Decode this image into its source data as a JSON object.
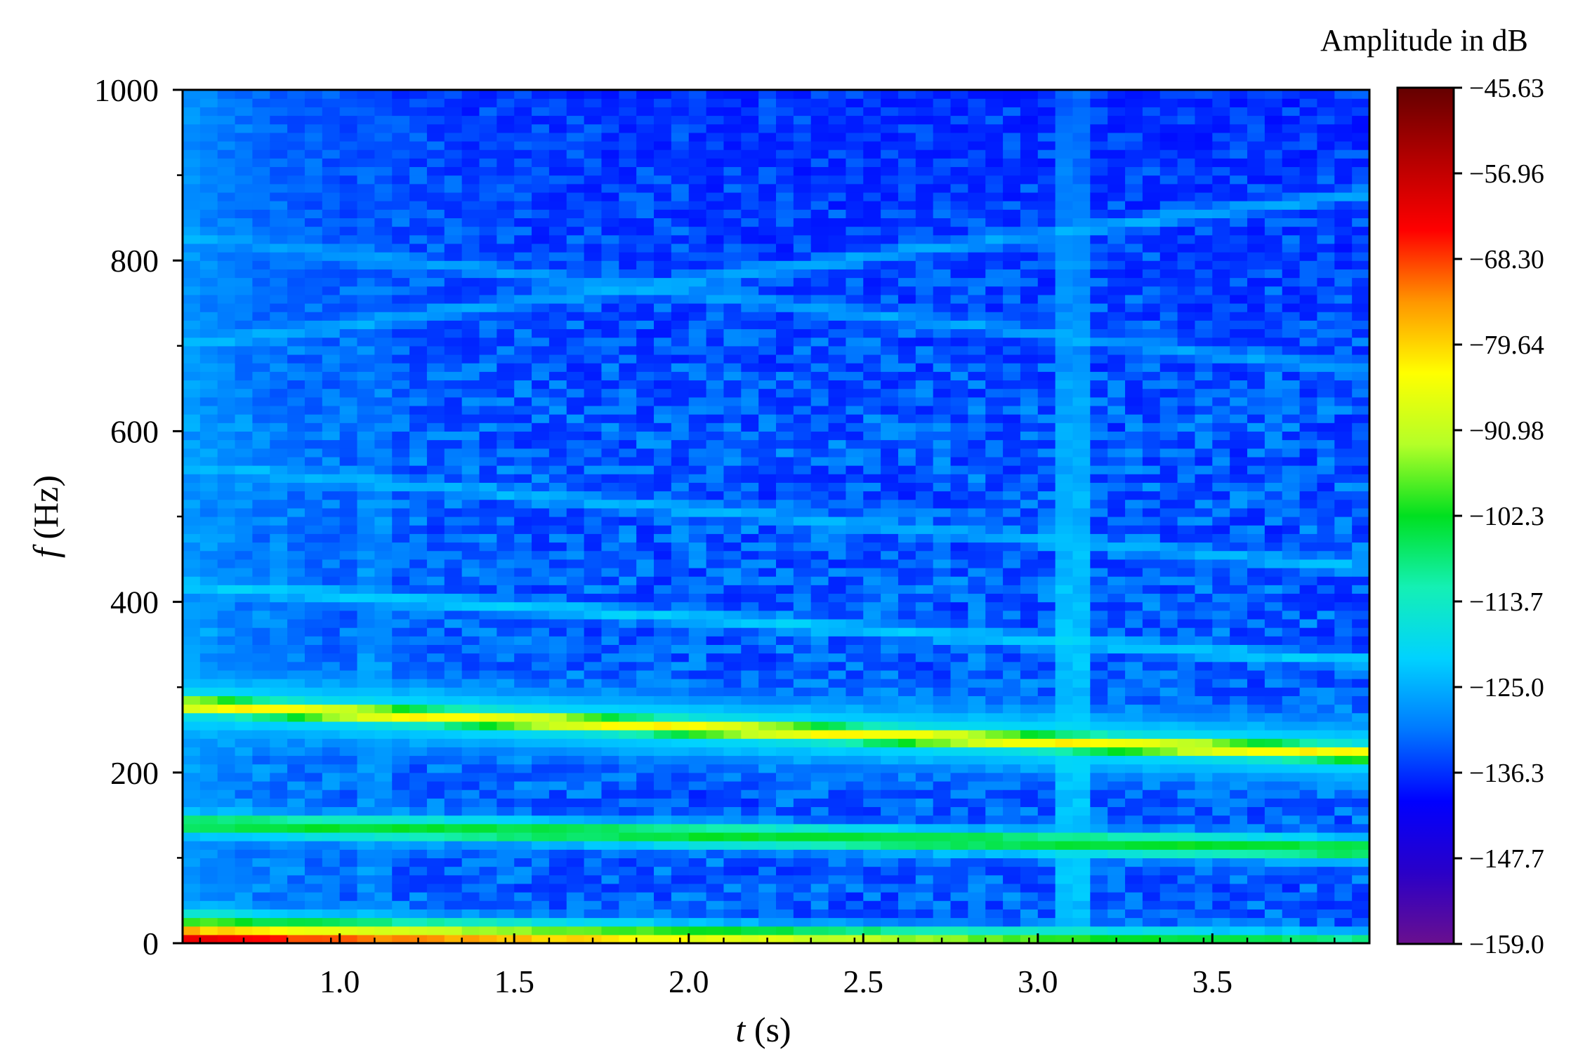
{
  "chart_data": {
    "type": "heatmap",
    "title": "",
    "xlabel": {
      "var": "t",
      "unit": " (s)"
    },
    "ylabel": {
      "var": "f",
      "unit": " (Hz)"
    },
    "xlim": [
      0.55,
      3.95
    ],
    "ylim": [
      0,
      1000
    ],
    "x_ticks": [
      {
        "value": 1.0,
        "label": "1.0"
      },
      {
        "value": 1.5,
        "label": "1.5"
      },
      {
        "value": 2.0,
        "label": "2.0"
      },
      {
        "value": 2.5,
        "label": "2.5"
      },
      {
        "value": 3.0,
        "label": "3.0"
      },
      {
        "value": 3.5,
        "label": "3.5"
      }
    ],
    "y_ticks": [
      {
        "value": 0,
        "label": "0"
      },
      {
        "value": 200,
        "label": "200"
      },
      {
        "value": 400,
        "label": "400"
      },
      {
        "value": 600,
        "label": "600"
      },
      {
        "value": 800,
        "label": "800"
      },
      {
        "value": 1000,
        "label": "1000"
      }
    ],
    "time_step_s": 0.05,
    "freq_step_hz": 10,
    "colorbar": {
      "title": "Amplitude in dB",
      "min": -159.0,
      "max": -45.63,
      "colormap": "jet-like (purple → blue → cyan → green → yellow → red → dark red)",
      "colors": [
        "#6a0f8e",
        "#2a00c8",
        "#0000ff",
        "#0078ff",
        "#00d2ff",
        "#14f0b4",
        "#00e020",
        "#b4ff28",
        "#ffff00",
        "#ff9600",
        "#ff0000",
        "#b40000",
        "#640000"
      ],
      "tick_labels": [
        "−45.63",
        "−56.96",
        "−68.30",
        "−79.64",
        "−90.98",
        "−102.3",
        "−113.7",
        "−125.0",
        "−136.3",
        "−147.7",
        "−159.0"
      ]
    },
    "features": {
      "background_level_db": -135,
      "dominant_band": {
        "freq_hz_start": 280,
        "freq_hz_end": 222,
        "t_start": 0.55,
        "t_end": 3.95,
        "peak_db": -83
      },
      "secondary_band": {
        "freq_hz_start": 140,
        "freq_hz_end": 110,
        "t_start": 0.55,
        "t_end": 3.95,
        "peak_db": -103
      },
      "low_frequency_band": {
        "freq_hz_max": 35,
        "peak_db_start": -58,
        "peak_db_end": -108
      },
      "faint_harmonics": [
        {
          "freq_hz_start": 420,
          "freq_hz_end": 330,
          "level_db": -122
        },
        {
          "freq_hz_start": 560,
          "freq_hz_end": 440,
          "level_db": -125
        },
        {
          "freq_hz_start": 830,
          "freq_hz_end": 670,
          "level_db": -127
        },
        {
          "freq_hz_start": 700,
          "freq_hz_end": 880,
          "level_db": -126
        }
      ],
      "vertical_events": [
        {
          "t_s": 1.1,
          "level_db": -120
        },
        {
          "t_s": 3.1,
          "level_db": -112
        }
      ]
    }
  }
}
